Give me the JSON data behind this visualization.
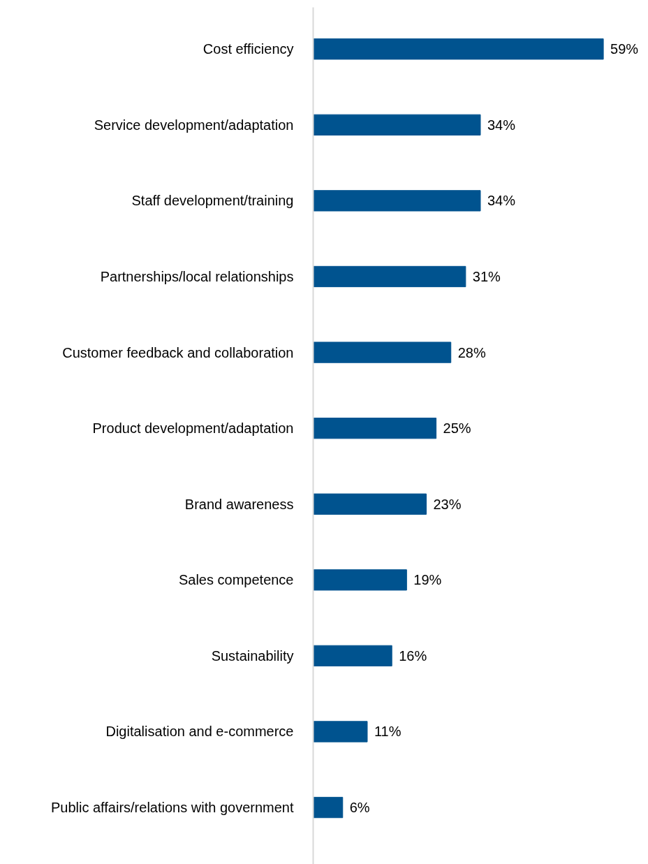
{
  "chart_data": {
    "type": "bar",
    "orientation": "horizontal",
    "data_labels": true,
    "grid": false,
    "categories": [
      "Cost efficiency",
      "Service development/adaptation",
      "Staff development/training",
      "Partnerships/local relationships",
      "Customer feedback and collaboration",
      "Product development/adaptation",
      "Brand awareness",
      "Sales competence",
      "Sustainability",
      "Digitalisation and e-commerce",
      "Public affairs/relations with government"
    ],
    "values": [
      59,
      34,
      34,
      31,
      28,
      25,
      23,
      19,
      16,
      11,
      6
    ],
    "value_labels": [
      "59%",
      "34%",
      "34%",
      "31%",
      "28%",
      "25%",
      "23%",
      "19%",
      "16%",
      "11%",
      "6%"
    ],
    "color": "#00538f"
  }
}
